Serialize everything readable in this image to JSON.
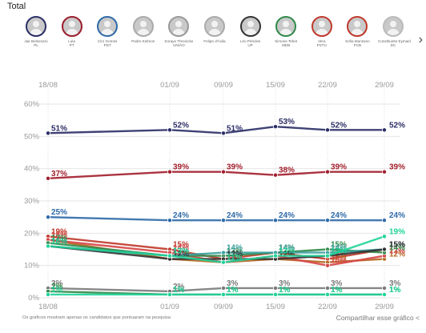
{
  "header": {
    "title": "Total",
    "next_icon": "chevron-right-icon"
  },
  "candidates": [
    {
      "name": "Jair Bolsonaro",
      "party": "PL",
      "color": "#2a2d66"
    },
    {
      "name": "Lula",
      "party": "PT",
      "color": "#9b1c2a"
    },
    {
      "name": "Ciro Gomes",
      "party": "PDT",
      "color": "#2e6aa8"
    },
    {
      "name": "Padre Kelmon",
      "party": "",
      "color": "#aaaaaa"
    },
    {
      "name": "Soraya Thronicke",
      "party": "UNIÃO",
      "color": "#999999"
    },
    {
      "name": "Felipe d'Ávila",
      "party": "",
      "color": "#aaaaaa"
    },
    {
      "name": "Léo Péricles",
      "party": "UP",
      "color": "#333333"
    },
    {
      "name": "Simone Tebet",
      "party": "MDB",
      "color": "#2f8a4a"
    },
    {
      "name": "Vera",
      "party": "PSTU",
      "color": "#c0392b"
    },
    {
      "name": "Sofia Manzano",
      "party": "PCB",
      "color": "#c0392b"
    },
    {
      "name": "Constituinte Eymael",
      "party": "DC",
      "color": "#bbbbbb"
    }
  ],
  "chart_data": {
    "type": "line",
    "x": [
      "18/08",
      "01/09",
      "09/09",
      "15/09",
      "22/09",
      "29/09"
    ],
    "ylim": [
      0,
      60
    ],
    "yticks": [
      "0%",
      "10%",
      "20%",
      "30%",
      "40%",
      "50%",
      "60%"
    ],
    "grid": true,
    "series": [
      {
        "color": "#2a2d66",
        "values": [
          51,
          52,
          51,
          53,
          52,
          52
        ],
        "labels": [
          "51%",
          "52%",
          "51%",
          "53%",
          "52%",
          "52%"
        ]
      },
      {
        "color": "#a11d2b",
        "values": [
          37,
          39,
          39,
          38,
          39,
          39
        ],
        "labels": [
          "37%",
          "39%",
          "39%",
          "38%",
          "39%",
          "39%"
        ]
      },
      {
        "color": "#2e6aa8",
        "values": [
          25,
          24,
          24,
          24,
          24,
          24
        ],
        "labels": [
          "25%",
          "24%",
          "24%",
          "24%",
          "24%",
          "24%"
        ]
      },
      {
        "color": "#c0392b",
        "values": [
          19,
          15,
          12,
          14,
          12,
          15
        ],
        "labels": [
          "19%",
          "15%",
          "12%",
          "14%",
          "12%",
          "15%"
        ]
      },
      {
        "color": "#b5651d",
        "values": [
          18,
          12,
          11,
          12,
          11,
          12
        ],
        "labels": [
          "18%",
          "12%",
          "11%",
          "12%",
          "11%",
          "12%"
        ]
      },
      {
        "color": "#d64545",
        "values": [
          18,
          14,
          11,
          13,
          10,
          13
        ],
        "labels": [
          "18%",
          "14%",
          "11%",
          "13%",
          "10%",
          "13%"
        ]
      },
      {
        "color": "#2f8a4a",
        "values": [
          17,
          13,
          13,
          14,
          15,
          14
        ],
        "labels": [
          "17%",
          "13%",
          "13%",
          "14%",
          "15%",
          "14%"
        ]
      },
      {
        "color": "#3aa0a0",
        "values": [
          16,
          13,
          14,
          14,
          14,
          15
        ],
        "labels": [
          "16%",
          "13%",
          "14%",
          "14%",
          "14%",
          "15%"
        ]
      },
      {
        "color": "#333333",
        "values": [
          16,
          12,
          12,
          12,
          13,
          15
        ],
        "labels": [
          "16%",
          "12%",
          "12%",
          "12%",
          "13%",
          "15%"
        ]
      },
      {
        "color": "#20d39a",
        "values": [
          16,
          13,
          11,
          13,
          13,
          19
        ],
        "labels": [
          "16%",
          "13%",
          "11%",
          "13%",
          "13%",
          "19%"
        ]
      },
      {
        "color": "#7a7a7a",
        "values": [
          3,
          2,
          3,
          3,
          3,
          3
        ],
        "labels": [
          "3%",
          "2%",
          "3%",
          "3%",
          "3%",
          "3%"
        ]
      },
      {
        "color": "#2f8a4a",
        "values": [
          2,
          1,
          1,
          1,
          1,
          1
        ],
        "labels": [
          "2%",
          "1%",
          "1%",
          "1%",
          "1%",
          "1%"
        ]
      },
      {
        "color": "#20d39a",
        "values": [
          1,
          1,
          1,
          1,
          1,
          1
        ],
        "labels": [
          "1%",
          "1%",
          "1%",
          "1%",
          "1%",
          "1%"
        ]
      }
    ]
  },
  "footer": {
    "note": "Os gráficos mostram apenas os candidatos que pontuaram na pesquisa",
    "share_label": "Compartilhar esse gráfico",
    "share_icon": "share-icon"
  }
}
